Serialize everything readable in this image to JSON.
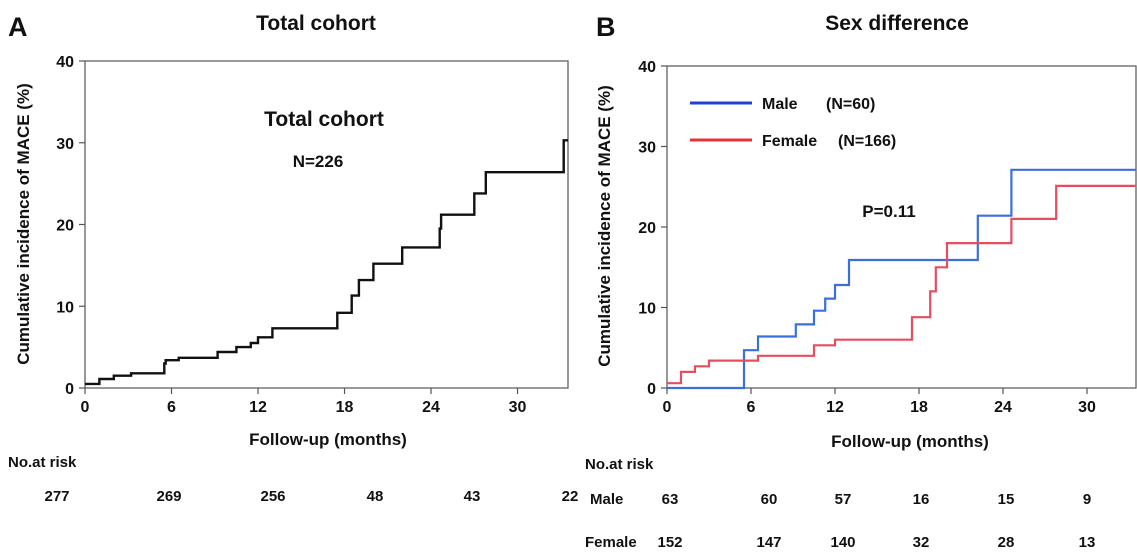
{
  "chart_data": [
    {
      "panel_letter": "A",
      "type": "line",
      "step": true,
      "title": "Total cohort",
      "xlabel": "Follow-up (months)",
      "ylabel": "Cumulative incidence of MACE (%)",
      "xlim": [
        0,
        33.5
      ],
      "ylim": [
        0,
        40
      ],
      "xticks": [
        0,
        6,
        12,
        18,
        24,
        30
      ],
      "yticks": [
        0,
        10,
        20,
        30,
        40
      ],
      "grid": false,
      "annotations": {
        "title": "Total cohort",
        "n": "N=226"
      },
      "series": [
        {
          "color": "#111111",
          "x": [
            0,
            1,
            2,
            3.2,
            5.5,
            5.6,
            6.5,
            9.2,
            10.5,
            11.5,
            12,
            13,
            17.5,
            18.5,
            19,
            20,
            22,
            24.6,
            24.7,
            27,
            27.8,
            33.2,
            33.5
          ],
          "y": [
            0.5,
            1.1,
            1.5,
            1.8,
            3.0,
            3.4,
            3.7,
            4.4,
            5.0,
            5.5,
            6.2,
            7.3,
            9.2,
            11.3,
            13.2,
            15.2,
            17.2,
            19.5,
            21.2,
            23.8,
            26.4,
            30.3,
            30.3
          ]
        }
      ],
      "risk_table": {
        "title": "No.at risk",
        "rows": [
          {
            "label": "",
            "values": [
              "277",
              "269",
              "256",
              "48",
              "43",
              "22"
            ]
          }
        ]
      }
    },
    {
      "panel_letter": "B",
      "type": "line",
      "step": true,
      "title": "Sex difference",
      "xlabel": "Follow-up (months)",
      "ylabel": "Cumulative incidence of MACE (%)",
      "xlim": [
        0,
        33.5
      ],
      "ylim": [
        0,
        40
      ],
      "xticks": [
        0,
        6,
        12,
        18,
        24,
        30
      ],
      "yticks": [
        0,
        10,
        20,
        30,
        40
      ],
      "grid": false,
      "legend_position": "top-left",
      "annotations": {
        "p_value": "P=0.11"
      },
      "series": [
        {
          "name": "Male",
          "legend_n": "(N=60)",
          "color": "#3a6fe0",
          "x": [
            0,
            5.4,
            5.5,
            6.5,
            9.2,
            10.5,
            11.3,
            12,
            13,
            22.2,
            24.6,
            33.5
          ],
          "y": [
            0,
            0,
            4.7,
            6.4,
            7.9,
            9.6,
            11.1,
            12.8,
            15.9,
            21.4,
            27.1,
            27.1
          ]
        },
        {
          "name": "Female",
          "legend_n": "(N=166)",
          "color": "#e64d5e",
          "x": [
            0,
            1,
            2,
            3,
            6.5,
            10.5,
            12,
            17.5,
            18.8,
            19.2,
            20,
            24.6,
            27.8,
            33.5
          ],
          "y": [
            0.6,
            2.0,
            2.7,
            3.4,
            4.0,
            5.3,
            6.0,
            8.8,
            12.0,
            15.0,
            18.0,
            21.0,
            25.1,
            25.1
          ]
        }
      ],
      "risk_table": {
        "title": "No.at risk",
        "rows": [
          {
            "label": "Male",
            "values": [
              "63",
              "60",
              "57",
              "16",
              "15",
              "9"
            ]
          },
          {
            "label": "Female",
            "values": [
              "152",
              "147",
              "140",
              "32",
              "28",
              "13"
            ]
          }
        ]
      }
    }
  ]
}
